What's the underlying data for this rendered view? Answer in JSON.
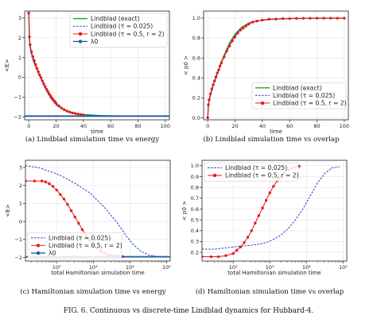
{
  "figure_caption": "FIG. 6.  Continuous vs discrete-time Lindblad dynamics for Hubbard-4.",
  "colors": {
    "exact": "#2ca02c",
    "dashed": "#1f3fbf",
    "red": "#e31a1c",
    "lambda": "#1f5fa0"
  },
  "chart_data": [
    {
      "id": "a",
      "type": "line",
      "caption": "(a) Lindblad simulation time vs energy",
      "xlabel": "time",
      "ylabel": "<E>",
      "xlim": [
        -3,
        103
      ],
      "ylim": [
        -2.15,
        3.35
      ],
      "xscale": "linear",
      "xticks": [
        0,
        20,
        40,
        60,
        80,
        100
      ],
      "xticklabels": [
        "0",
        "20",
        "40",
        "60",
        "80",
        "100"
      ],
      "yticks": [
        -2,
        -1,
        0,
        1,
        2,
        3
      ],
      "yticklabels": [
        "−2",
        "−1",
        "0",
        "1",
        "2",
        "3"
      ],
      "legend": {
        "position": "top-right",
        "entries": [
          "Lindblad (exact)",
          "Lindblad (τ = 0.025)",
          "Lindblad (τ = 0.5, r = 2)",
          "λ0"
        ]
      },
      "series": [
        {
          "name": "Lindblad (exact)",
          "style": "solid",
          "color": "#2ca02c",
          "x": [
            0,
            0.5,
            1,
            2,
            3,
            4,
            6,
            8,
            10,
            13,
            16,
            20,
            25,
            30,
            35,
            40,
            50,
            60,
            70,
            80,
            90,
            100
          ],
          "y": [
            3.25,
            1.95,
            1.55,
            1.2,
            0.95,
            0.75,
            0.4,
            0.1,
            -0.2,
            -0.65,
            -1.0,
            -1.35,
            -1.6,
            -1.75,
            -1.83,
            -1.88,
            -1.93,
            -1.95,
            -1.96,
            -1.96,
            -1.96,
            -1.96
          ]
        },
        {
          "name": "Lindblad (τ = 0.025)",
          "style": "dashed",
          "color": "#1f3fbf",
          "x": [
            0,
            0.5,
            1,
            2,
            3,
            4,
            6,
            8,
            10,
            13,
            16,
            20,
            25,
            30,
            35,
            40,
            50,
            60,
            70,
            80,
            90,
            100
          ],
          "y": [
            3.25,
            1.9,
            1.5,
            1.15,
            0.9,
            0.7,
            0.35,
            0.05,
            -0.25,
            -0.7,
            -1.05,
            -1.4,
            -1.63,
            -1.77,
            -1.85,
            -1.89,
            -1.93,
            -1.95,
            -1.96,
            -1.96,
            -1.96,
            -1.96
          ]
        },
        {
          "name": "Lindblad (τ = 0.5, r = 2)",
          "style": "marker",
          "color": "#e31a1c",
          "x": [
            0,
            0.5,
            1,
            2,
            3,
            4,
            5,
            6,
            7,
            8,
            9,
            10,
            11,
            12,
            13,
            14,
            15,
            16,
            17,
            18,
            19,
            20,
            22,
            24,
            26,
            28,
            30,
            32,
            34,
            36,
            38,
            40
          ],
          "y": [
            3.25,
            2.05,
            1.65,
            1.3,
            1.05,
            0.85,
            0.65,
            0.45,
            0.28,
            0.12,
            -0.02,
            -0.18,
            -0.33,
            -0.47,
            -0.6,
            -0.72,
            -0.84,
            -0.95,
            -1.05,
            -1.14,
            -1.22,
            -1.3,
            -1.44,
            -1.55,
            -1.64,
            -1.71,
            -1.76,
            -1.8,
            -1.83,
            -1.86,
            -1.88,
            -1.9
          ]
        },
        {
          "name": "λ0",
          "style": "hline",
          "color": "#1f5fa0",
          "y": -1.96
        }
      ]
    },
    {
      "id": "b",
      "type": "line",
      "caption": "(b) Lindblad simulation time vs overlap",
      "xlabel": "time",
      "ylabel": "< p0 >",
      "xlim": [
        -3,
        103
      ],
      "ylim": [
        -0.02,
        1.07
      ],
      "xscale": "linear",
      "xticks": [
        0,
        20,
        40,
        60,
        80,
        100
      ],
      "xticklabels": [
        "0",
        "20",
        "40",
        "60",
        "80",
        "100"
      ],
      "yticks": [
        0,
        0.2,
        0.4,
        0.6,
        0.8,
        1.0
      ],
      "yticklabels": [
        "0.0",
        "0.2",
        "0.4",
        "0.6",
        "0.8",
        "1.0"
      ],
      "legend": {
        "position": "bottom-right",
        "entries": [
          "Lindblad (exact)",
          "Lindblad (τ = 0.025)",
          "Lindblad (τ = 0.5, r = 2)"
        ]
      },
      "series": [
        {
          "name": "Lindblad (exact)",
          "style": "solid",
          "color": "#2ca02c",
          "x": [
            0,
            0.5,
            1,
            2,
            3,
            4,
            6,
            8,
            10,
            13,
            16,
            20,
            25,
            30,
            35,
            40,
            50,
            60,
            70,
            80,
            90,
            100
          ],
          "y": [
            0.0,
            0.12,
            0.17,
            0.23,
            0.28,
            0.33,
            0.41,
            0.48,
            0.56,
            0.66,
            0.75,
            0.84,
            0.91,
            0.95,
            0.97,
            0.98,
            0.99,
            0.995,
            0.997,
            0.998,
            0.999,
            0.999
          ]
        },
        {
          "name": "Lindblad (τ = 0.025)",
          "style": "dashed",
          "color": "#1f3fbf",
          "x": [
            0,
            0.5,
            1,
            2,
            3,
            4,
            6,
            8,
            10,
            13,
            16,
            20,
            25,
            30,
            35,
            40,
            50,
            60,
            70,
            80,
            90,
            100
          ],
          "y": [
            0.0,
            0.11,
            0.16,
            0.22,
            0.27,
            0.32,
            0.4,
            0.47,
            0.55,
            0.65,
            0.74,
            0.83,
            0.9,
            0.94,
            0.97,
            0.98,
            0.99,
            0.995,
            0.997,
            0.998,
            0.999,
            0.999
          ]
        },
        {
          "name": "Lindblad (τ = 0.5, r = 2)",
          "style": "marker",
          "color": "#e31a1c",
          "x": [
            0,
            0.5,
            1,
            2,
            3,
            4,
            5,
            6,
            7,
            8,
            9,
            10,
            12,
            14,
            16,
            18,
            20,
            22,
            24,
            26,
            28,
            30,
            33,
            36,
            40,
            45,
            50,
            55,
            60,
            65,
            70,
            75,
            80,
            85,
            90,
            95,
            100
          ],
          "y": [
            0.0,
            0.13,
            0.18,
            0.24,
            0.29,
            0.33,
            0.37,
            0.41,
            0.45,
            0.48,
            0.52,
            0.55,
            0.61,
            0.67,
            0.72,
            0.77,
            0.81,
            0.85,
            0.88,
            0.9,
            0.92,
            0.94,
            0.96,
            0.97,
            0.98,
            0.99,
            0.99,
            0.995,
            0.995,
            0.997,
            0.998,
            0.998,
            0.999,
            0.999,
            0.999,
            0.999,
            0.999
          ]
        }
      ]
    },
    {
      "id": "c",
      "type": "line",
      "caption": "(c) Hamiltonian simulation time vs energy",
      "xlabel": "total Hamiltonian simulation time",
      "ylabel": "<E>",
      "xlim": [
        1.15,
        5.1
      ],
      "ylim": [
        -2.2,
        3.4
      ],
      "xscale": "log",
      "xticks": [
        2,
        3,
        4,
        5
      ],
      "xticklabels": [
        "10²",
        "10³",
        "10⁴",
        "10⁵"
      ],
      "yticks": [
        -2,
        -1,
        0,
        1,
        2,
        3
      ],
      "yticklabels": [
        "−2",
        "−1",
        "0",
        "1",
        "2",
        "3"
      ],
      "legend": {
        "position": "bottom-left",
        "entries": [
          "Lindblad (τ = 0.025)",
          "Lindblad (τ = 0.5, r = 2)",
          "λ0"
        ]
      },
      "series": [
        {
          "name": "Lindblad (τ = 0.025)",
          "style": "dashed",
          "color": "#1f3fbf",
          "x": [
            1.15,
            1.5,
            2.0,
            2.3,
            2.6,
            2.9,
            3.1,
            3.3,
            3.5,
            3.7,
            3.9,
            4.1,
            4.3,
            4.5,
            4.7,
            4.9
          ],
          "y": [
            3.1,
            3.0,
            2.65,
            2.35,
            2.0,
            1.6,
            1.2,
            0.8,
            0.3,
            -0.2,
            -0.8,
            -1.3,
            -1.65,
            -1.85,
            -1.93,
            -1.96
          ]
        },
        {
          "name": "Lindblad (τ = 0.5, r = 2)",
          "style": "marker",
          "color": "#e31a1c",
          "x": [
            1.15,
            1.4,
            1.6,
            1.7,
            1.8,
            1.9,
            2.0,
            2.1,
            2.2,
            2.3,
            2.4,
            2.5,
            2.6,
            2.7,
            2.8,
            2.9,
            3.0,
            3.1,
            3.2,
            3.3,
            3.4,
            3.5,
            3.6,
            3.7,
            3.8
          ],
          "y": [
            2.25,
            2.25,
            2.25,
            2.2,
            2.1,
            1.95,
            1.75,
            1.5,
            1.25,
            0.95,
            0.6,
            0.25,
            -0.1,
            -0.45,
            -0.75,
            -1.05,
            -1.3,
            -1.5,
            -1.65,
            -1.76,
            -1.84,
            -1.89,
            -1.92,
            -1.94,
            -1.95
          ]
        },
        {
          "name": "λ0",
          "style": "hline",
          "color": "#1f5fa0",
          "y": -1.96
        }
      ]
    },
    {
      "id": "d",
      "type": "line",
      "caption": "(d) Hamiltonian simulation time vs overlap",
      "xlabel": "total Hamiltonian simulation time",
      "ylabel": "< p0 >",
      "xlim": [
        1.15,
        5.1
      ],
      "ylim": [
        0.12,
        1.05
      ],
      "xscale": "log",
      "xticks": [
        2,
        3,
        4,
        5
      ],
      "xticklabels": [
        "10²",
        "10³",
        "10⁴",
        "10⁵"
      ],
      "yticks": [
        0.2,
        0.3,
        0.4,
        0.5,
        0.6,
        0.7,
        0.8,
        0.9,
        1.0
      ],
      "yticklabels": [
        "0.2",
        "0.3",
        "0.4",
        "0.5",
        "0.6",
        "0.7",
        "0.8",
        "0.9",
        "1.0"
      ],
      "legend": {
        "position": "top-left",
        "entries": [
          "Lindblad (τ = 0.025)",
          "Lindblad (τ = 0.5, r = 2)"
        ]
      },
      "series": [
        {
          "name": "Lindblad (τ = 0.025)",
          "style": "dashed",
          "color": "#1f3fbf",
          "x": [
            1.15,
            1.5,
            2.0,
            2.3,
            2.6,
            2.9,
            3.1,
            3.3,
            3.5,
            3.7,
            3.9,
            4.1,
            4.3,
            4.5,
            4.7,
            4.9
          ],
          "y": [
            0.23,
            0.23,
            0.25,
            0.26,
            0.27,
            0.29,
            0.32,
            0.36,
            0.42,
            0.5,
            0.6,
            0.72,
            0.84,
            0.93,
            0.98,
            0.99
          ]
        },
        {
          "name": "Lindblad (τ = 0.5, r = 2)",
          "style": "marker",
          "color": "#e31a1c",
          "x": [
            1.15,
            1.4,
            1.6,
            1.8,
            2.0,
            2.1,
            2.2,
            2.3,
            2.4,
            2.5,
            2.6,
            2.7,
            2.8,
            2.9,
            3.0,
            3.1,
            3.2,
            3.3,
            3.4,
            3.5,
            3.6,
            3.7,
            3.8
          ],
          "y": [
            0.16,
            0.16,
            0.16,
            0.17,
            0.19,
            0.22,
            0.25,
            0.29,
            0.34,
            0.4,
            0.47,
            0.54,
            0.61,
            0.68,
            0.75,
            0.81,
            0.86,
            0.9,
            0.94,
            0.96,
            0.98,
            0.99,
            0.995
          ]
        }
      ]
    }
  ]
}
